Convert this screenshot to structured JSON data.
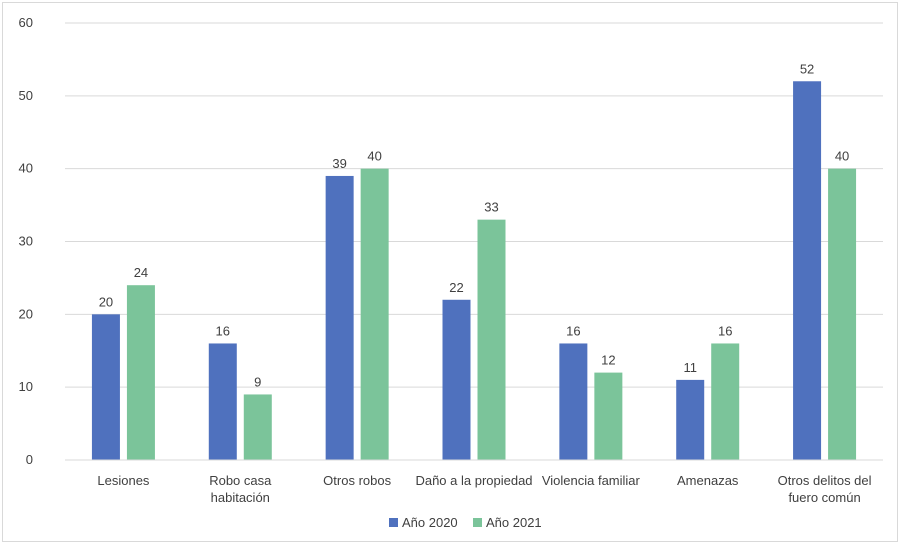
{
  "chart_data": {
    "type": "bar",
    "categories": [
      [
        "Lesiones"
      ],
      [
        "Robo casa",
        "habitación"
      ],
      [
        "Otros robos"
      ],
      [
        "Daño a la propiedad"
      ],
      [
        "Violencia familiar"
      ],
      [
        "Amenazas"
      ],
      [
        "Otros delitos del",
        "fuero común"
      ]
    ],
    "series": [
      {
        "name": "Año 2020",
        "color": "#4f71be",
        "values": [
          20,
          16,
          39,
          22,
          16,
          11,
          52
        ]
      },
      {
        "name": "Año 2021",
        "color": "#7bc49a",
        "values": [
          24,
          9,
          40,
          33,
          12,
          16,
          40
        ]
      }
    ],
    "ylim": [
      0,
      60
    ],
    "yticks": [
      0,
      10,
      20,
      30,
      40,
      50,
      60
    ],
    "grid": true,
    "legend": "bottom",
    "gridColor": "#d9d9d9"
  }
}
